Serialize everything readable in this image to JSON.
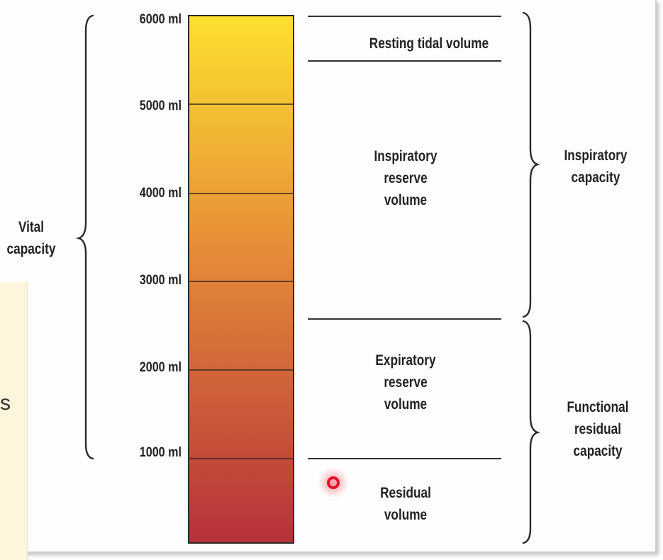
{
  "scale": {
    "ticks": [
      "6000 ml",
      "5000 ml",
      "4000 ml",
      "3000 ml",
      "2000 ml",
      "1000 ml"
    ],
    "max_ml": 6000,
    "min_ml": 0
  },
  "volumes": {
    "resting_tidal": "Resting tidal volume",
    "inspiratory_reserve": [
      "Inspiratory",
      "reserve",
      "volume"
    ],
    "expiratory_reserve": [
      "Expiratory",
      "reserve",
      "volume"
    ],
    "residual": [
      "Residual",
      "volume"
    ]
  },
  "capacities": {
    "vital": [
      "Vital",
      "capacity"
    ],
    "inspiratory": [
      "Inspiratory",
      "capacity"
    ],
    "functional_residual": [
      "Functional",
      "residual",
      "capacity"
    ]
  },
  "side_note_fragment": "s",
  "colors": {
    "bar_top": "#fde12f",
    "bar_mid": "#e58b38",
    "bar_bottom": "#b5313a",
    "pointer": "#e3102a"
  }
}
